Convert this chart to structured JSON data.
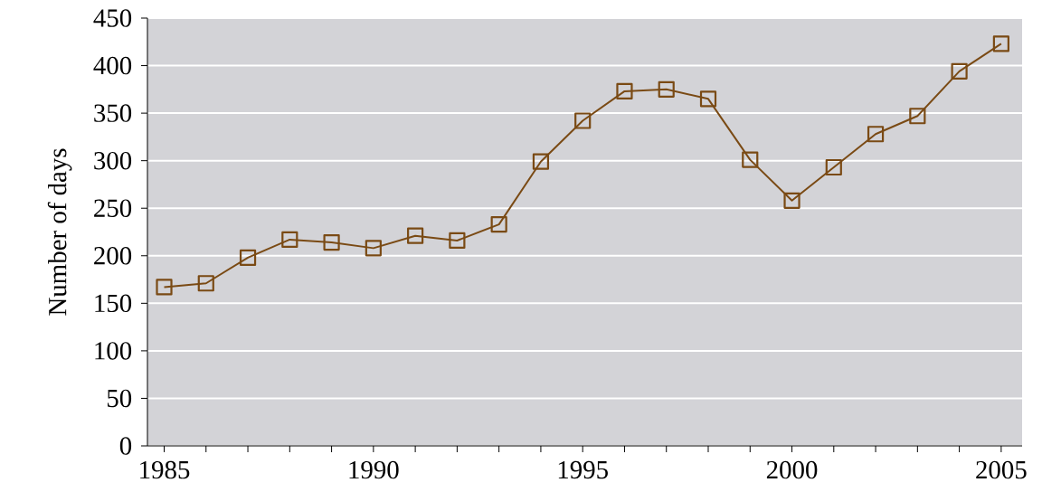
{
  "chart_data": {
    "type": "line",
    "ylabel": "Number of days",
    "x": [
      1985,
      1986,
      1987,
      1988,
      1989,
      1990,
      1991,
      1992,
      1993,
      1994,
      1995,
      1996,
      1997,
      1998,
      1999,
      2000,
      2001,
      2002,
      2003,
      2004,
      2005
    ],
    "values": [
      167,
      171,
      198,
      217,
      214,
      208,
      221,
      216,
      233,
      299,
      342,
      373,
      375,
      365,
      301,
      258,
      293,
      328,
      347,
      394,
      423
    ],
    "color": "#7a4a14",
    "marker": "square",
    "line_style": "solid",
    "grid": "y",
    "xlim": [
      1984.6,
      2005.5
    ],
    "xticks": [
      1985,
      {
        "value": 1986,
        "label": null
      },
      {
        "value": 1987,
        "label": null
      },
      {
        "value": 1988,
        "label": null
      },
      {
        "value": 1989,
        "label": null
      },
      1990,
      {
        "value": 1991,
        "label": null
      },
      {
        "value": 1992,
        "label": null
      },
      {
        "value": 1993,
        "label": null
      },
      {
        "value": 1994,
        "label": null
      },
      1995,
      {
        "value": 1996,
        "label": null
      },
      {
        "value": 1997,
        "label": null
      },
      {
        "value": 1998,
        "label": null
      },
      {
        "value": 1999,
        "label": null
      },
      2000,
      {
        "value": 2001,
        "label": null
      },
      {
        "value": 2002,
        "label": null
      },
      {
        "value": 2003,
        "label": null
      },
      {
        "value": 2004,
        "label": null
      },
      2005
    ],
    "ylim": [
      0,
      450
    ],
    "yticks": [
      0,
      50,
      100,
      150,
      200,
      250,
      300,
      350,
      400,
      450
    ]
  }
}
